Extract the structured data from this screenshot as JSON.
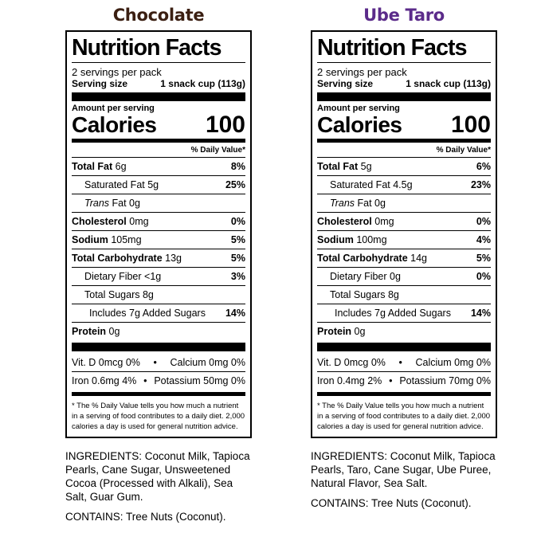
{
  "products": [
    {
      "key": "choc",
      "title": "Chocolate",
      "title_color": "#3b1f12",
      "label": {
        "heading": "Nutrition Facts",
        "servings": "2 servings per pack",
        "serving_size_label": "Serving size",
        "serving_size_value": "1 snack cup (113g)",
        "amount_per_serving": "Amount per serving",
        "calories_label": "Calories",
        "calories_value": "100",
        "dv_header": "% Daily Value*",
        "total_fat_label": "Total Fat",
        "total_fat_amount": " 6g",
        "total_fat_pct": "8%",
        "sat_fat": "Saturated Fat 5g",
        "sat_fat_pct": "25%",
        "trans_fat_label": "Trans",
        "trans_fat_rest": " Fat 0g",
        "cholesterol_label": "Cholesterol",
        "cholesterol_amount": " 0mg",
        "cholesterol_pct": "0%",
        "sodium_label": "Sodium",
        "sodium_amount": " 105mg",
        "sodium_pct": "5%",
        "carb_label": "Total Carbohydrate",
        "carb_amount": " 13g",
        "carb_pct": "5%",
        "fiber": "Dietary Fiber <1g",
        "fiber_pct": "3%",
        "sugars": "Total Sugars 8g",
        "added_sugars": "Includes 7g Added Sugars",
        "added_sugars_pct": "14%",
        "protein_label": "Protein",
        "protein_amount": " 0g",
        "vit_row1_left": "Vit. D 0mcg 0%",
        "vit_row1_right": "Calcium 0mg  0%",
        "vit_row2_left": "Iron 0.6mg 4%",
        "vit_row2_right": "Potassium 50mg 0%",
        "bullet": "•",
        "footnote": "* The % Daily Value tells you how much a nutrient in a serving of food contributes to a daily diet. 2,000 calories a day is used for general nutrition advice."
      },
      "ingredients": "INGREDIENTS: Coconut Milk, Tapioca Pearls, Cane Sugar, Unsweetened Cocoa (Processed with Alkali), Sea Salt, Guar Gum.",
      "contains": "CONTAINS: Tree Nuts (Coconut)."
    },
    {
      "key": "ube",
      "title": "Ube Taro",
      "title_color": "#5b2b8a",
      "label": {
        "heading": "Nutrition Facts",
        "servings": "2 servings per pack",
        "serving_size_label": "Serving size",
        "serving_size_value": "1 snack cup (113g)",
        "amount_per_serving": "Amount per serving",
        "calories_label": "Calories",
        "calories_value": "100",
        "dv_header": "% Daily Value*",
        "total_fat_label": "Total Fat",
        "total_fat_amount": " 5g",
        "total_fat_pct": "6%",
        "sat_fat": "Saturated Fat 4.5g",
        "sat_fat_pct": "23%",
        "trans_fat_label": "Trans",
        "trans_fat_rest": " Fat 0g",
        "cholesterol_label": "Cholesterol",
        "cholesterol_amount": " 0mg",
        "cholesterol_pct": "0%",
        "sodium_label": "Sodium",
        "sodium_amount": " 100mg",
        "sodium_pct": "4%",
        "carb_label": "Total Carbohydrate",
        "carb_amount": " 14g",
        "carb_pct": "5%",
        "fiber": "Dietary Fiber 0g",
        "fiber_pct": "0%",
        "sugars": "Total Sugars 8g",
        "added_sugars": "Includes 7g Added Sugars",
        "added_sugars_pct": "14%",
        "protein_label": "Protein",
        "protein_amount": " 0g",
        "vit_row1_left": "Vit. D 0mcg 0%",
        "vit_row1_right": "Calcium 0mg   0%",
        "vit_row2_left": "Iron 0.4mg   2%",
        "vit_row2_right": "Potassium 70mg 0%",
        "bullet": "•",
        "footnote": "* The % Daily Value tells you how much a nutrient in a serving of food contributes to a daily diet. 2,000 calories a day is used for general nutrition advice."
      },
      "ingredients": "INGREDIENTS: Coconut Milk, Tapioca Pearls, Taro, Cane Sugar, Ube Puree, Natural Flavor, Sea Salt.",
      "contains": "CONTAINS: Tree Nuts (Coconut)."
    }
  ]
}
